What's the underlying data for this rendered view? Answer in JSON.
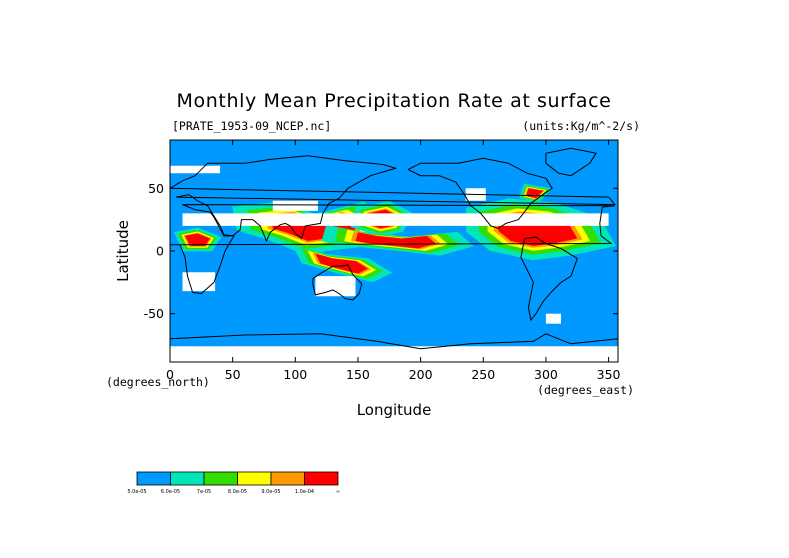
{
  "chart_data": {
    "type": "heatmap",
    "title": "Monthly Mean Precipitation Rate at surface",
    "file_label": "[PRATE_1953-09_NCEP.nc]",
    "units_label": "(units:Kg/m^-2/s)",
    "xlabel": "Longitude",
    "ylabel": "Latitude",
    "x_unit_label": "(degrees_east)",
    "y_unit_label": "(degrees_north)",
    "xlim": [
      0,
      357.5
    ],
    "ylim": [
      -88.5,
      88.5
    ],
    "x_ticks": [
      "0",
      "50",
      "100",
      "150",
      "200",
      "250",
      "300",
      "350"
    ],
    "x_tick_values": [
      0,
      50,
      100,
      150,
      200,
      250,
      300,
      350
    ],
    "y_ticks": [
      "50",
      "0",
      "-50"
    ],
    "y_tick_values": [
      50,
      0,
      -50
    ],
    "colorbar": {
      "colors": [
        "#0099ff",
        "#00e6b8",
        "#33dd00",
        "#ffff00",
        "#ff9900",
        "#ff0000"
      ],
      "labels": [
        "5.0e-05",
        "6.0e-05",
        "7e-05",
        "8.0e-05",
        "9.0e-05",
        "1.0e-04",
        "∞"
      ]
    },
    "background_level": "#0099ff",
    "missing_color": "#ffffff",
    "regions": [
      {
        "level": 6,
        "color": "#ff0000",
        "points": [
          [
            80,
            28
          ],
          [
            100,
            30
          ],
          [
            115,
            25
          ],
          [
            135,
            30
          ],
          [
            150,
            22
          ],
          [
            145,
            12
          ],
          [
            125,
            10
          ],
          [
            110,
            8
          ],
          [
            95,
            14
          ],
          [
            82,
            18
          ]
        ]
      },
      {
        "level": 6,
        "color": "#ff0000",
        "points": [
          [
            158,
            30
          ],
          [
            172,
            33
          ],
          [
            182,
            28
          ],
          [
            178,
            20
          ],
          [
            168,
            18
          ],
          [
            156,
            22
          ]
        ]
      },
      {
        "level": 6,
        "color": "#ff0000",
        "points": [
          [
            150,
            15
          ],
          [
            165,
            12
          ],
          [
            185,
            10
          ],
          [
            205,
            12
          ],
          [
            212,
            6
          ],
          [
            198,
            2
          ],
          [
            180,
            4
          ],
          [
            160,
            6
          ],
          [
            148,
            8
          ]
        ]
      },
      {
        "level": 6,
        "color": "#ff0000",
        "points": [
          [
            262,
            26
          ],
          [
            280,
            30
          ],
          [
            300,
            28
          ],
          [
            318,
            22
          ],
          [
            325,
            10
          ],
          [
            306,
            6
          ],
          [
            290,
            4
          ],
          [
            272,
            8
          ],
          [
            262,
            16
          ]
        ]
      },
      {
        "level": 6,
        "color": "#ff0000",
        "points": [
          [
            116,
            -2
          ],
          [
            130,
            -6
          ],
          [
            148,
            -8
          ],
          [
            158,
            -14
          ],
          [
            150,
            -18
          ],
          [
            134,
            -14
          ],
          [
            120,
            -10
          ]
        ]
      },
      {
        "level": 6,
        "color": "#ff0000",
        "points": [
          [
            12,
            12
          ],
          [
            22,
            14
          ],
          [
            32,
            10
          ],
          [
            28,
            4
          ],
          [
            16,
            4
          ]
        ]
      },
      {
        "level": 6,
        "color": "#ff0000",
        "points": [
          [
            286,
            50
          ],
          [
            298,
            48
          ],
          [
            292,
            42
          ],
          [
            284,
            44
          ]
        ]
      }
    ],
    "land_outlines": [
      {
        "name": "north-america",
        "points": [
          [
            190,
            65
          ],
          [
            200,
            70
          ],
          [
            230,
            70
          ],
          [
            250,
            74
          ],
          [
            270,
            70
          ],
          [
            285,
            62
          ],
          [
            300,
            58
          ],
          [
            305,
            50
          ],
          [
            296,
            44
          ],
          [
            288,
            38
          ],
          [
            282,
            30
          ],
          [
            278,
            25
          ],
          [
            268,
            22
          ],
          [
            262,
            18
          ],
          [
            256,
            20
          ],
          [
            248,
            30
          ],
          [
            240,
            36
          ],
          [
            235,
            45
          ],
          [
            228,
            55
          ],
          [
            215,
            60
          ],
          [
            200,
            60
          ],
          [
            190,
            65
          ]
        ]
      },
      {
        "name": "south-america",
        "points": [
          [
            283,
            10
          ],
          [
            292,
            11
          ],
          [
            300,
            6
          ],
          [
            312,
            2
          ],
          [
            325,
            -6
          ],
          [
            320,
            -20
          ],
          [
            312,
            -25
          ],
          [
            305,
            -32
          ],
          [
            298,
            -40
          ],
          [
            292,
            -50
          ],
          [
            288,
            -55
          ],
          [
            286,
            -45
          ],
          [
            288,
            -35
          ],
          [
            290,
            -25
          ],
          [
            285,
            -15
          ],
          [
            280,
            -5
          ],
          [
            283,
            10
          ]
        ]
      },
      {
        "name": "africa",
        "points": [
          [
            345,
            35
          ],
          [
            355,
            36
          ],
          [
            10,
            37
          ],
          [
            20,
            33
          ],
          [
            32,
            31
          ],
          [
            35,
            27
          ],
          [
            43,
            12
          ],
          [
            51,
            12
          ],
          [
            44,
            0
          ],
          [
            40,
            -12
          ],
          [
            35,
            -25
          ],
          [
            25,
            -34
          ],
          [
            18,
            -33
          ],
          [
            14,
            -20
          ],
          [
            12,
            -5
          ],
          [
            8,
            5
          ],
          [
            0,
            5
          ],
          [
            352,
            6
          ],
          [
            344,
            12
          ],
          [
            343,
            22
          ],
          [
            345,
            35
          ]
        ]
      },
      {
        "name": "eurasia",
        "points": [
          [
            350,
            43
          ],
          [
            0,
            50
          ],
          [
            10,
            56
          ],
          [
            20,
            60
          ],
          [
            30,
            70
          ],
          [
            60,
            70
          ],
          [
            80,
            73
          ],
          [
            110,
            76
          ],
          [
            140,
            72
          ],
          [
            170,
            69
          ],
          [
            180,
            66
          ],
          [
            160,
            60
          ],
          [
            142,
            50
          ],
          [
            135,
            42
          ],
          [
            127,
            38
          ],
          [
            122,
            30
          ],
          [
            120,
            22
          ],
          [
            108,
            20
          ],
          [
            105,
            10
          ],
          [
            100,
            14
          ],
          [
            96,
            20
          ],
          [
            92,
            22
          ],
          [
            88,
            21
          ],
          [
            80,
            15
          ],
          [
            77,
            8
          ],
          [
            72,
            20
          ],
          [
            66,
            25
          ],
          [
            57,
            25
          ],
          [
            56,
            17
          ],
          [
            50,
            12
          ],
          [
            43,
            13
          ],
          [
            40,
            20
          ],
          [
            35,
            28
          ],
          [
            30,
            36
          ],
          [
            22,
            40
          ],
          [
            15,
            45
          ],
          [
            5,
            43
          ],
          [
            355,
            37
          ],
          [
            350,
            43
          ]
        ]
      },
      {
        "name": "australia",
        "points": [
          [
            114,
            -22
          ],
          [
            120,
            -18
          ],
          [
            130,
            -12
          ],
          [
            137,
            -12
          ],
          [
            142,
            -11
          ],
          [
            146,
            -19
          ],
          [
            153,
            -26
          ],
          [
            151,
            -34
          ],
          [
            146,
            -39
          ],
          [
            140,
            -38
          ],
          [
            135,
            -34
          ],
          [
            130,
            -31
          ],
          [
            124,
            -33
          ],
          [
            116,
            -35
          ],
          [
            114,
            -27
          ],
          [
            114,
            -22
          ]
        ]
      },
      {
        "name": "greenland",
        "points": [
          [
            300,
            78
          ],
          [
            320,
            82
          ],
          [
            340,
            78
          ],
          [
            335,
            70
          ],
          [
            320,
            60
          ],
          [
            310,
            62
          ],
          [
            300,
            70
          ],
          [
            300,
            78
          ]
        ]
      },
      {
        "name": "antarctica",
        "points": [
          [
            0,
            -70
          ],
          [
            60,
            -67
          ],
          [
            120,
            -66
          ],
          [
            165,
            -72
          ],
          [
            200,
            -78
          ],
          [
            240,
            -74
          ],
          [
            290,
            -72
          ],
          [
            300,
            -66
          ],
          [
            320,
            -74
          ],
          [
            357.5,
            -70
          ]
        ]
      }
    ],
    "missing_patches": [
      {
        "points": [
          [
            10,
            -17
          ],
          [
            36,
            -17
          ],
          [
            36,
            -32
          ],
          [
            10,
            -32
          ]
        ]
      },
      {
        "points": [
          [
            350,
            30
          ],
          [
            10,
            30
          ],
          [
            10,
            20
          ],
          [
            350,
            20
          ]
        ]
      },
      {
        "points": [
          [
            116,
            -20
          ],
          [
            148,
            -20
          ],
          [
            148,
            -36
          ],
          [
            116,
            -36
          ]
        ]
      },
      {
        "points": [
          [
            82,
            40
          ],
          [
            118,
            40
          ],
          [
            118,
            32
          ],
          [
            82,
            32
          ]
        ]
      },
      {
        "points": [
          [
            0,
            68
          ],
          [
            40,
            68
          ],
          [
            40,
            62
          ],
          [
            0,
            62
          ]
        ]
      },
      {
        "points": [
          [
            236,
            50
          ],
          [
            252,
            50
          ],
          [
            252,
            40
          ],
          [
            236,
            40
          ]
        ]
      },
      {
        "points": [
          [
            300,
            -50
          ],
          [
            312,
            -50
          ],
          [
            312,
            -58
          ],
          [
            300,
            -58
          ]
        ]
      },
      {
        "points": [
          [
            0,
            -76
          ],
          [
            357.5,
            -76
          ],
          [
            357.5,
            -88.5
          ],
          [
            0,
            -88.5
          ]
        ]
      },
      {
        "points": [
          [
            240,
            28
          ],
          [
            256,
            28
          ],
          [
            256,
            20
          ],
          [
            240,
            20
          ]
        ]
      }
    ]
  }
}
